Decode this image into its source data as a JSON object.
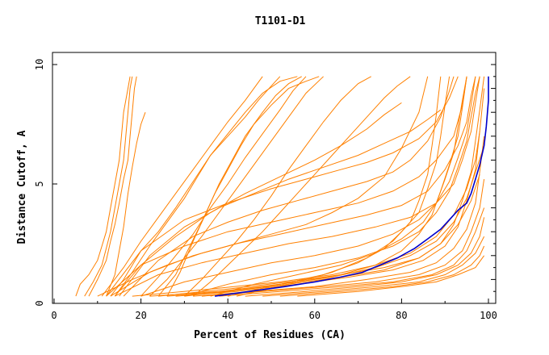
{
  "chart_data": {
    "type": "line",
    "title": "T1101-D1",
    "xlabel": "Percent of Residues (CA)",
    "ylabel": "Distance Cutoff, A",
    "xlim": [
      0,
      100
    ],
    "ylim": [
      0,
      10
    ],
    "x_ticks": [
      "0",
      "20",
      "40",
      "60",
      "80",
      "100"
    ],
    "y_ticks": [
      "0",
      "5",
      "10"
    ],
    "grid": false,
    "legend": "none",
    "colors": {
      "models": "#ff8000",
      "highlight": "#0000cc",
      "frame": "#000000"
    },
    "series": [
      {
        "color": "#ff8000",
        "x": [
          5,
          6,
          8,
          10,
          11,
          12,
          13,
          14,
          15,
          15.5,
          16,
          16.5,
          17,
          17.5
        ],
        "y": [
          0.3,
          0.8,
          1.2,
          1.8,
          2.4,
          3,
          4,
          5,
          6,
          7,
          8,
          8.5,
          9,
          9.5
        ]
      },
      {
        "color": "#ff8000",
        "x": [
          7,
          9,
          11,
          12,
          13,
          14,
          15,
          16,
          16.5,
          17,
          17.5,
          18
        ],
        "y": [
          0.3,
          0.9,
          1.6,
          2.3,
          3,
          4,
          5,
          6,
          7,
          8,
          9,
          9.5
        ]
      },
      {
        "color": "#ff8000",
        "x": [
          8,
          10,
          12,
          13,
          14,
          15,
          16,
          17,
          17.5,
          18,
          18.5,
          19
        ],
        "y": [
          0.3,
          1,
          1.8,
          2.6,
          3.3,
          4.2,
          5.2,
          6,
          7,
          8,
          9,
          9.5
        ]
      },
      {
        "color": "#ff8000",
        "x": [
          12,
          14,
          15,
          16,
          17,
          18,
          19,
          20,
          21
        ],
        "y": [
          0.3,
          1.2,
          2.2,
          3.2,
          4.6,
          5.7,
          6.7,
          7.5,
          8
        ]
      },
      {
        "color": "#ff8000",
        "x": [
          13,
          16,
          20,
          24,
          28,
          32,
          36,
          40,
          44,
          48,
          52,
          56
        ],
        "y": [
          0.3,
          1,
          2.2,
          3,
          4,
          5.1,
          6.2,
          7.1,
          8,
          8.8,
          9.3,
          9.5
        ]
      },
      {
        "color": "#ff8000",
        "x": [
          14,
          18,
          22,
          26,
          30,
          33,
          36,
          40,
          44,
          47,
          50,
          52
        ],
        "y": [
          0.3,
          1.3,
          2.4,
          3.4,
          4.4,
          5.3,
          6.2,
          7,
          7.8,
          8.5,
          9.1,
          9.5
        ]
      },
      {
        "color": "#ff8000",
        "x": [
          20,
          24,
          28,
          32,
          36,
          40,
          44,
          48,
          52,
          55,
          58
        ],
        "y": [
          0.3,
          1.1,
          2,
          2.9,
          4,
          5,
          6.1,
          7.1,
          8.1,
          8.9,
          9.5
        ]
      },
      {
        "color": "#ff8000",
        "x": [
          22,
          26,
          30,
          34,
          38,
          42,
          46,
          50,
          54,
          58,
          62
        ],
        "y": [
          0.3,
          1,
          1.9,
          2.8,
          3.8,
          4.8,
          5.8,
          6.8,
          7.8,
          8.8,
          9.5
        ]
      },
      {
        "color": "#ff8000",
        "x": [
          24,
          28,
          31,
          34,
          37,
          40,
          43,
          46,
          50,
          54,
          58,
          61
        ],
        "y": [
          0.3,
          1.2,
          2.3,
          3.4,
          4.6,
          5.6,
          6.6,
          7.5,
          8.3,
          9,
          9.3,
          9.5
        ]
      },
      {
        "color": "#ff8000",
        "x": [
          26,
          29,
          32,
          35,
          38,
          41,
          44,
          48,
          51,
          54,
          57
        ],
        "y": [
          0.3,
          1.3,
          2.6,
          3.8,
          5,
          6,
          7,
          8,
          8.7,
          9.2,
          9.5
        ]
      },
      {
        "color": "#ff8000",
        "x": [
          30,
          34,
          38,
          42,
          46,
          50,
          54,
          58,
          62,
          66,
          70,
          73
        ],
        "y": [
          0.3,
          1,
          1.8,
          2.6,
          3.5,
          4.5,
          5.6,
          6.6,
          7.6,
          8.5,
          9.2,
          9.5
        ]
      },
      {
        "color": "#ff8000",
        "x": [
          32,
          36,
          40,
          44,
          48,
          52,
          56,
          60,
          64,
          68,
          72,
          76,
          79,
          82
        ],
        "y": [
          0.3,
          0.9,
          1.6,
          2.3,
          3,
          3.8,
          4.6,
          5.4,
          6.2,
          7,
          7.8,
          8.6,
          9.1,
          9.5
        ]
      },
      {
        "color": "#ff8000",
        "x": [
          14,
          20,
          28,
          36,
          44,
          52,
          60,
          66,
          72,
          76,
          80
        ],
        "y": [
          0.3,
          1.6,
          2.8,
          3.8,
          4.6,
          5.3,
          6,
          6.6,
          7.3,
          7.9,
          8.4
        ]
      },
      {
        "color": "#ff8000",
        "x": [
          15,
          22,
          30,
          38,
          46,
          54,
          62,
          70,
          76,
          82,
          86,
          89
        ],
        "y": [
          0.3,
          2,
          3.2,
          4,
          4.6,
          5.2,
          5.7,
          6.2,
          6.7,
          7.2,
          7.7,
          8.1
        ]
      },
      {
        "color": "#ff8000",
        "x": [
          12,
          20,
          30,
          40,
          50,
          58,
          66,
          72,
          78,
          84,
          88,
          91,
          93
        ],
        "y": [
          0.3,
          2.2,
          3.5,
          4.2,
          4.8,
          5.2,
          5.6,
          5.9,
          6.3,
          6.9,
          7.6,
          8.6,
          9.5
        ]
      },
      {
        "color": "#ff8000",
        "x": [
          16,
          24,
          32,
          40,
          48,
          56,
          64,
          72,
          78,
          82,
          86,
          89,
          91,
          92
        ],
        "y": [
          0.3,
          1.8,
          2.8,
          3.4,
          3.9,
          4.3,
          4.7,
          5.1,
          5.5,
          6,
          6.8,
          7.8,
          8.9,
          9.5
        ]
      },
      {
        "color": "#ff8000",
        "x": [
          12,
          20,
          30,
          40,
          50,
          60,
          70,
          78,
          84,
          88,
          92,
          94,
          95
        ],
        "y": [
          0.3,
          1.6,
          2.4,
          3,
          3.4,
          3.8,
          4.2,
          4.7,
          5.3,
          6,
          7,
          8.3,
          9.5
        ]
      },
      {
        "color": "#ff8000",
        "x": [
          13,
          22,
          32,
          42,
          52,
          62,
          72,
          80,
          86,
          90,
          93,
          95,
          96,
          97
        ],
        "y": [
          0.3,
          1.3,
          2,
          2.5,
          2.9,
          3.3,
          3.7,
          4.1,
          4.7,
          5.6,
          6.6,
          7.6,
          8.7,
          9.5
        ]
      },
      {
        "color": "#ff8000",
        "x": [
          14,
          24,
          34,
          44,
          54,
          64,
          74,
          82,
          88,
          92,
          94,
          96,
          97,
          98
        ],
        "y": [
          0.3,
          1.2,
          1.7,
          2.1,
          2.5,
          2.8,
          3.2,
          3.6,
          4.2,
          5,
          6,
          7.2,
          8.4,
          9.5
        ]
      },
      {
        "color": "#ff8000",
        "x": [
          20,
          30,
          40,
          50,
          60,
          70,
          78,
          84,
          88,
          91,
          93,
          95,
          96,
          97
        ],
        "y": [
          0.3,
          0.9,
          1.3,
          1.7,
          2,
          2.4,
          2.9,
          3.5,
          4.2,
          5.1,
          6.1,
          7.2,
          8.3,
          9.5
        ]
      },
      {
        "color": "#ff8000",
        "x": [
          30,
          40,
          50,
          60,
          70,
          78,
          84,
          88,
          91,
          93,
          95,
          96,
          97,
          98
        ],
        "y": [
          0.3,
          0.8,
          1.2,
          1.5,
          1.9,
          2.4,
          3,
          3.8,
          4.7,
          5.7,
          6.8,
          7.8,
          8.8,
          9.5
        ]
      },
      {
        "color": "#ff8000",
        "x": [
          36,
          46,
          56,
          66,
          74,
          80,
          85,
          88,
          90,
          92,
          93,
          94,
          95
        ],
        "y": [
          0.3,
          0.8,
          1.2,
          1.6,
          2.1,
          2.7,
          3.4,
          4.2,
          5.2,
          6.3,
          7.4,
          8.5,
          9.5
        ]
      },
      {
        "color": "#ff8000",
        "x": [
          40,
          52,
          62,
          70,
          76,
          80,
          84,
          86,
          88,
          89,
          90,
          91
        ],
        "y": [
          0.3,
          0.8,
          1.2,
          1.7,
          2.3,
          3,
          3.8,
          4.8,
          5.9,
          7,
          8.3,
          9.5
        ]
      },
      {
        "color": "#ff8000",
        "x": [
          42,
          54,
          64,
          72,
          78,
          82,
          84,
          86,
          87,
          88,
          89
        ],
        "y": [
          0.3,
          0.8,
          1.3,
          1.9,
          2.6,
          3.4,
          4.3,
          5.4,
          6.6,
          7.9,
          9.5
        ]
      },
      {
        "color": "#ff8000",
        "x": [
          30,
          44,
          56,
          66,
          74,
          80,
          84,
          87,
          89,
          91,
          93,
          94,
          95
        ],
        "y": [
          0.3,
          0.6,
          0.9,
          1.2,
          1.6,
          2.2,
          2.9,
          3.7,
          4.7,
          5.8,
          7,
          8.2,
          9.5
        ]
      },
      {
        "color": "#ff8000",
        "x": [
          24,
          40,
          54,
          66,
          76,
          84,
          89,
          92,
          94,
          96,
          97,
          98,
          99
        ],
        "y": [
          0.3,
          0.6,
          0.9,
          1.2,
          1.5,
          1.9,
          2.5,
          3.3,
          4.3,
          5.5,
          6.8,
          8.1,
          9.5
        ]
      },
      {
        "color": "#ff8000",
        "x": [
          28,
          42,
          56,
          68,
          78,
          85,
          90,
          93,
          95,
          97,
          98,
          99
        ],
        "y": [
          0.3,
          0.5,
          0.8,
          1.1,
          1.4,
          1.8,
          2.4,
          3.2,
          4.3,
          5.6,
          7.2,
          9
        ]
      },
      {
        "color": "#ff8000",
        "x": [
          32,
          46,
          60,
          72,
          82,
          88,
          92,
          95,
          97,
          98,
          99
        ],
        "y": [
          0.3,
          0.5,
          0.7,
          1,
          1.3,
          1.7,
          2.3,
          3.1,
          4.2,
          5.5,
          7
        ]
      },
      {
        "color": "#ff8000",
        "x": [
          34,
          48,
          62,
          74,
          84,
          90,
          94,
          96,
          98,
          99
        ],
        "y": [
          0.3,
          0.5,
          0.7,
          0.9,
          1.2,
          1.6,
          2.2,
          3,
          4,
          5.2
        ]
      },
      {
        "color": "#ff8000",
        "x": [
          38,
          52,
          66,
          78,
          87,
          92,
          95,
          97,
          99
        ],
        "y": [
          0.3,
          0.5,
          0.7,
          0.9,
          1.2,
          1.6,
          2.2,
          3,
          4
        ]
      },
      {
        "color": "#ff8000",
        "x": [
          44,
          58,
          70,
          80,
          88,
          93,
          96,
          98,
          99
        ],
        "y": [
          0.3,
          0.5,
          0.7,
          0.9,
          1.2,
          1.6,
          2.1,
          2.8,
          3.6
        ]
      },
      {
        "color": "#ff8000",
        "x": [
          48,
          62,
          74,
          84,
          90,
          94,
          97,
          99
        ],
        "y": [
          0.3,
          0.5,
          0.7,
          0.9,
          1.2,
          1.6,
          2.1,
          2.8
        ]
      },
      {
        "color": "#ff8000",
        "x": [
          52,
          66,
          78,
          86,
          92,
          96,
          98,
          99
        ],
        "y": [
          0.3,
          0.5,
          0.7,
          0.9,
          1.2,
          1.6,
          2,
          2.4
        ]
      },
      {
        "color": "#ff8000",
        "x": [
          56,
          70,
          80,
          88,
          93,
          97,
          99
        ],
        "y": [
          0.3,
          0.5,
          0.7,
          0.9,
          1.2,
          1.5,
          2
        ]
      },
      {
        "color": "#ff8000",
        "x": [
          18,
          36,
          52,
          64,
          74,
          82,
          88,
          92,
          95,
          97,
          98
        ],
        "y": [
          0.3,
          0.6,
          0.9,
          1.2,
          1.6,
          2.1,
          2.8,
          3.7,
          4.8,
          6,
          7.2
        ]
      },
      {
        "color": "#ff8000",
        "x": [
          22,
          38,
          52,
          64,
          74,
          82,
          88,
          92,
          95,
          97,
          99
        ],
        "y": [
          0.3,
          0.5,
          0.8,
          1.1,
          1.5,
          2,
          2.6,
          3.4,
          4.4,
          5.5,
          6.6
        ]
      },
      {
        "color": "#ff8000",
        "x": [
          26,
          40,
          54,
          66,
          76,
          84,
          89,
          93,
          96,
          98
        ],
        "y": [
          0.3,
          0.5,
          0.8,
          1.1,
          1.4,
          1.9,
          2.5,
          3.3,
          4.3,
          5.4
        ]
      },
      {
        "color": "#ff8000",
        "x": [
          10,
          18,
          26,
          34,
          42,
          50,
          58,
          64,
          70,
          76,
          80,
          84,
          86
        ],
        "y": [
          0.3,
          1,
          1.6,
          2.1,
          2.5,
          2.9,
          3.3,
          3.8,
          4.4,
          5.3,
          6.5,
          8,
          9.5
        ]
      },
      {
        "color": "#ff8000",
        "x": [
          11,
          16,
          20,
          24,
          28,
          32,
          36,
          40,
          44,
          46,
          48
        ],
        "y": [
          0.3,
          1.5,
          2.6,
          3.6,
          4.6,
          5.6,
          6.6,
          7.6,
          8.5,
          9,
          9.5
        ]
      },
      {
        "color": "#0000cc",
        "x": [
          37,
          45,
          53,
          60,
          66,
          71,
          75,
          79,
          83,
          86,
          89,
          91,
          93,
          95,
          96,
          97,
          98,
          99,
          99.5,
          100,
          100
        ],
        "y": [
          0.3,
          0.5,
          0.7,
          0.9,
          1.1,
          1.3,
          1.6,
          1.9,
          2.3,
          2.7,
          3.1,
          3.5,
          3.9,
          4.2,
          4.6,
          5.2,
          5.8,
          6.6,
          7.4,
          8.5,
          9.5
        ]
      }
    ]
  }
}
